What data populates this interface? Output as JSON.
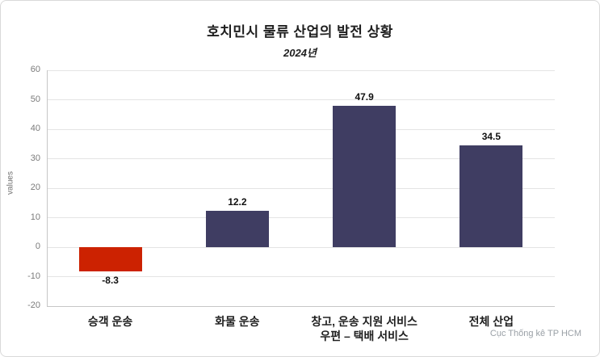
{
  "chart_data": {
    "type": "bar",
    "title": "호치민시 물류 산업의 발전 상황",
    "subtitle": "2024년",
    "categories": [
      "승객 운송",
      "화물 운송",
      "창고, 운송 지원 서비스\n우편 – 택배 서비스",
      "전체 산업"
    ],
    "values": [
      -8.3,
      12.2,
      47.9,
      34.5
    ],
    "value_labels": [
      "-8.3",
      "12.2",
      "47.9",
      "34.5"
    ],
    "bar_colors": [
      "#cc2201",
      "#3f3d62",
      "#3f3d62",
      "#3f3d62"
    ],
    "xlabel": "",
    "ylabel": "values",
    "ylim": [
      -20,
      60
    ],
    "ytick_step": 10,
    "grid": true,
    "legend": "none",
    "source": "Cục Thống kê TP HCM"
  }
}
